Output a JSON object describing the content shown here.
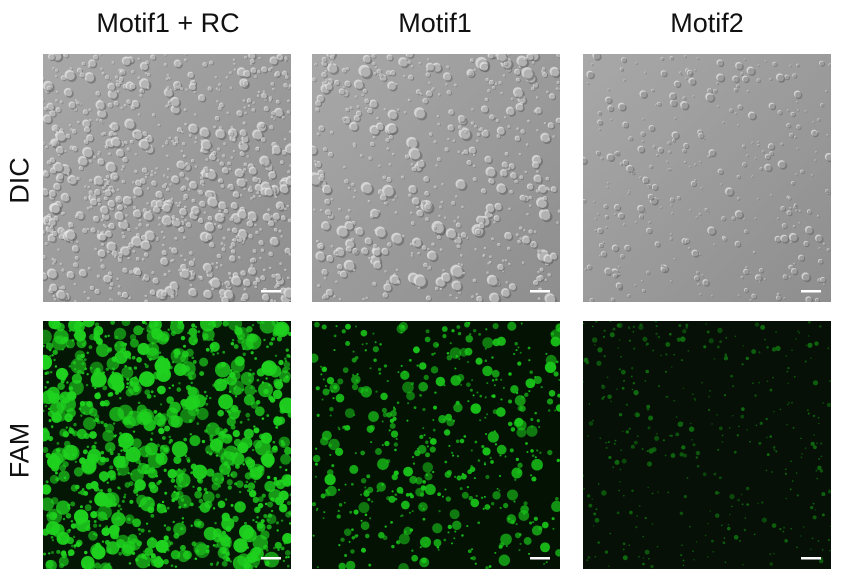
{
  "columns": [
    "Motif1 + RC",
    "Motif1",
    "Motif2"
  ],
  "rows": [
    "DIC",
    "FAM"
  ],
  "panels": [
    {
      "row": "DIC",
      "col": "Motif1 + RC",
      "style": "dic",
      "seed": 11,
      "count": 900,
      "rmin": 1.2,
      "rmax": 5,
      "tone": "#b4b4b4"
    },
    {
      "row": "DIC",
      "col": "Motif1",
      "style": "dic",
      "seed": 23,
      "count": 520,
      "rmin": 1.2,
      "rmax": 6,
      "tone": "#b2b2b2"
    },
    {
      "row": "DIC",
      "col": "Motif2",
      "style": "dic",
      "seed": 37,
      "count": 330,
      "rmin": 1,
      "rmax": 4,
      "tone": "#9c9c9c"
    },
    {
      "row": "FAM",
      "col": "Motif1 + RC",
      "style": "fam",
      "seed": 41,
      "count": 1100,
      "rmin": 1.2,
      "rmax": 8,
      "tone": "#1fd21f",
      "bg": "#041604"
    },
    {
      "row": "FAM",
      "col": "Motif1",
      "style": "fam",
      "seed": 53,
      "count": 520,
      "rmin": 1,
      "rmax": 6,
      "tone": "#19c419",
      "bg": "#041204"
    },
    {
      "row": "FAM",
      "col": "Motif2",
      "style": "fam",
      "seed": 67,
      "count": 380,
      "rmin": 0.8,
      "rmax": 2.8,
      "tone": "#0f6a0f",
      "bg": "#061006"
    }
  ],
  "scale_bar_color": "#ffffff"
}
